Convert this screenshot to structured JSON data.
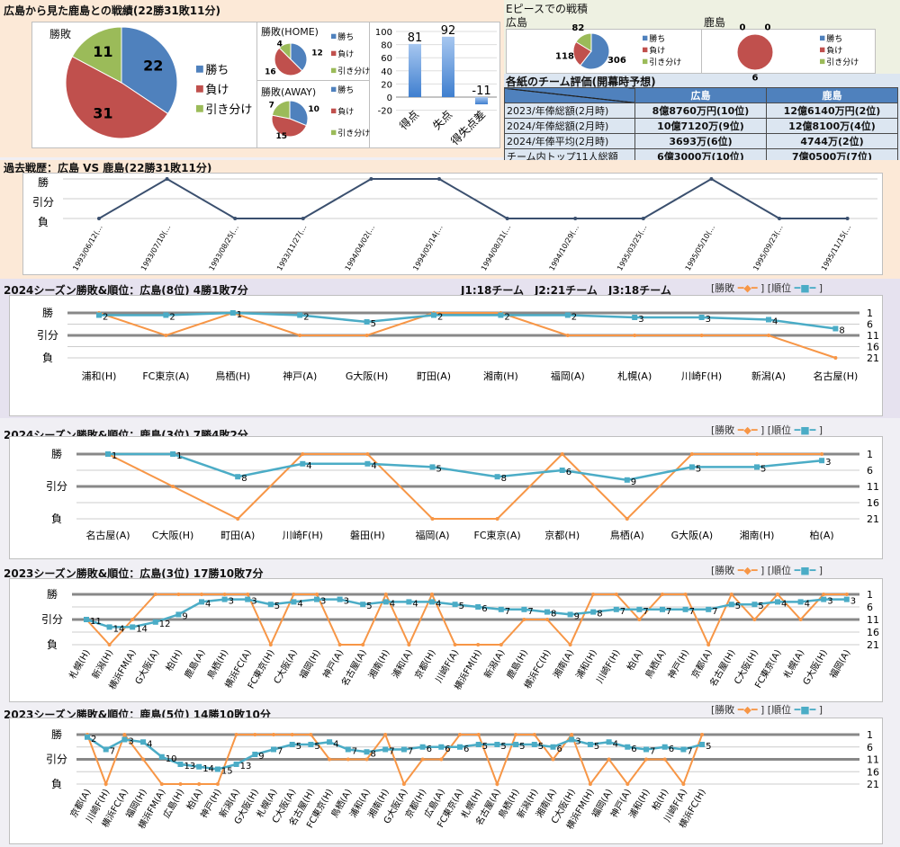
{
  "summary": {
    "title": "広島から見た鹿島との戦績(22勝31敗11分)",
    "legend": [
      "勝ち",
      "負け",
      "引き分け"
    ]
  },
  "epiece": {
    "title": "Eピースでの戦積",
    "hiroshima_label": "広島",
    "kashima_label": "鹿島"
  },
  "evaluation": {
    "title": "各紙のチーム評価(開幕時予想)",
    "headers": [
      "広島",
      "鹿島"
    ],
    "rows": [
      {
        "label": "2023/年俸総額(2月時)",
        "hiroshima": "8億8760万円(10位)",
        "kashima": "12億6140万円(2位)"
      },
      {
        "label": "2024/年俸総額(2月時)",
        "hiroshima": "10億7120万(9位)",
        "kashima": "12億8100万(4位)"
      },
      {
        "label": "2024/年俸平均(2月時)",
        "hiroshima": "3693万(6位)",
        "kashima": "4744万(2位)"
      },
      {
        "label": "チーム内トップ11人総額",
        "hiroshima": "6億3000万(10位)",
        "kashima": "7億0500万(7位)"
      }
    ]
  },
  "league_note": "J1:18チーム　J2:21チーム　J3:18チーム",
  "series_legend": {
    "result": "勝敗",
    "rank": "順位"
  },
  "result_axis": {
    "W": "勝",
    "D": "引分",
    "L": "負"
  },
  "rank_ticks": [
    "1",
    "6",
    "11",
    "16",
    "21"
  ],
  "colors": {
    "win": "#4f81bd",
    "loss": "#c0504d",
    "draw": "#9bbb59",
    "result_line": "#f79646",
    "rank_line": "#4bacc6",
    "history_line": "#3a4f6e"
  },
  "chart_data": [
    {
      "id": "pie_all",
      "type": "pie",
      "title": "勝敗",
      "labels": [
        "勝ち",
        "負け",
        "引き分け"
      ],
      "values": [
        22,
        31,
        11
      ]
    },
    {
      "id": "pie_home",
      "type": "pie",
      "title": "勝敗(HOME)",
      "labels": [
        "勝ち",
        "負け",
        "引き分け"
      ],
      "values": [
        12,
        16,
        4
      ]
    },
    {
      "id": "pie_away",
      "type": "pie",
      "title": "勝敗(AWAY)",
      "labels": [
        "勝ち",
        "負け",
        "引き分け"
      ],
      "values": [
        10,
        15,
        7
      ]
    },
    {
      "id": "goals",
      "type": "bar",
      "categories": [
        "得点",
        "失点",
        "得失点差"
      ],
      "values": [
        81,
        92,
        -11
      ],
      "ylim": [
        -20,
        100
      ],
      "yticks": [
        "100",
        "80",
        "60",
        "40",
        "20",
        "0",
        "-20"
      ]
    },
    {
      "id": "epiece_hiroshima",
      "type": "pie",
      "labels": [
        "勝ち",
        "負け",
        "引き分け"
      ],
      "values": [
        306,
        118,
        82
      ]
    },
    {
      "id": "epiece_kashima",
      "type": "pie",
      "labels": [
        "勝ち",
        "負け",
        "引き分け"
      ],
      "values": [
        0,
        6,
        0
      ]
    },
    {
      "id": "history",
      "type": "line",
      "title": "過去戦歴：広島 VS 鹿島(22勝31敗11分)",
      "categories": [
        "1993/06/12(…",
        "1993/07/10(…",
        "1993/08/25(…",
        "1993/11/27(…",
        "1994/04/02(…",
        "1994/05/14(…",
        "1994/08/31(…",
        "1994/10/29(…",
        "1995/03/25(…",
        "1995/05/10(…",
        "1995/09/23(…",
        "1995/11/15(…"
      ],
      "results": [
        "L",
        "W",
        "L",
        "L",
        "W",
        "W",
        "L",
        "L",
        "L",
        "W",
        "L",
        "L"
      ]
    },
    {
      "id": "s2024h",
      "type": "line",
      "title": "2024シーズン勝敗&順位：広島(8位) 4勝1敗7分",
      "categories": [
        "浦和(H)",
        "FC東京(A)",
        "鳥栖(H)",
        "神戸(A)",
        "G大阪(H)",
        "町田(A)",
        "湘南(H)",
        "福岡(A)",
        "札幌(A)",
        "川崎F(H)",
        "新潟(A)",
        "名古屋(H)"
      ],
      "results": [
        "W",
        "D",
        "W",
        "D",
        "D",
        "W",
        "W",
        "D",
        "D",
        "D",
        "D",
        "L"
      ],
      "ranks": [
        2,
        2,
        1,
        2,
        5,
        2,
        2,
        2,
        3,
        3,
        4,
        8
      ],
      "rank_axis": [
        1,
        21
      ]
    },
    {
      "id": "s2024k",
      "type": "line",
      "title": "2024シーズン勝敗&順位：鹿島(3位) 7勝4敗2分",
      "categories": [
        "名古屋(A)",
        "C大阪(H)",
        "町田(A)",
        "川崎F(H)",
        "磐田(H)",
        "福岡(A)",
        "FC東京(A)",
        "京都(H)",
        "鳥栖(A)",
        "G大阪(A)",
        "湘南(H)",
        "柏(A)"
      ],
      "results": [
        "W",
        "D",
        "L",
        "W",
        "W",
        "L",
        "L",
        "W",
        "L",
        "W",
        "W",
        "W"
      ],
      "ranks": [
        1,
        1,
        8,
        4,
        4,
        5,
        8,
        6,
        9,
        5,
        5,
        3
      ],
      "rank_axis": [
        1,
        21
      ]
    },
    {
      "id": "s2023h",
      "type": "line",
      "title": "2023シーズン勝敗&順位：広島(3位) 17勝10敗7分",
      "categories": [
        "札幌(H)",
        "新潟(H)",
        "横浜FM(A)",
        "G大阪(A)",
        "柏(H)",
        "鹿島(A)",
        "鳥栖(H)",
        "横浜FC(A)",
        "FC東京(H)",
        "C大阪(A)",
        "福岡(H)",
        "神戸(A)",
        "名古屋(A)",
        "湘南(H)",
        "浦和(A)",
        "京都(H)",
        "川崎F(A)",
        "横浜FM(H)",
        "新潟(A)",
        "鹿島(H)",
        "横浜FC(H)",
        "湘南(A)",
        "浦和(H)",
        "川崎F(H)",
        "柏(A)",
        "鳥栖(A)",
        "神戸(H)",
        "京都(A)",
        "名古屋(H)",
        "C大阪(H)",
        "FC東京(A)",
        "札幌(A)",
        "G大阪(H)",
        "福岡(A)"
      ],
      "results": [
        "D",
        "L",
        "D",
        "W",
        "W",
        "W",
        "W",
        "W",
        "L",
        "W",
        "W",
        "L",
        "L",
        "W",
        "L",
        "W",
        "L",
        "L",
        "L",
        "D",
        "D",
        "L",
        "W",
        "W",
        "D",
        "W",
        "W",
        "L",
        "W",
        "D",
        "W",
        "D",
        "W",
        "W"
      ],
      "ranks": [
        11,
        14,
        14,
        12,
        9,
        4,
        3,
        3,
        5,
        4,
        3,
        3,
        5,
        4,
        4,
        4,
        5,
        6,
        7,
        7,
        8,
        9,
        8,
        7,
        7,
        7,
        7,
        7,
        5,
        5,
        4,
        4,
        3,
        3
      ],
      "rank_axis": [
        1,
        21
      ]
    },
    {
      "id": "s2023k",
      "type": "line",
      "title": "2023シーズン勝敗&順位：鹿島(5位) 14勝10敗10分",
      "categories": [
        "京都(A)",
        "川崎F(H)",
        "横浜FC(A)",
        "福岡(H)",
        "横浜FM(A)",
        "広島(H)",
        "柏(A)",
        "神戸(H)",
        "新潟(A)",
        "G大阪(H)",
        "札幌(A)",
        "C大阪(A)",
        "名古屋(H)",
        "FC東京(H)",
        "鳥栖(A)",
        "浦和(A)",
        "湘南(H)",
        "G大阪(A)",
        "京都(H)",
        "広島(A)",
        "FC東京(A)",
        "札幌(H)",
        "名古屋(A)",
        "鳥栖(H)",
        "新潟(H)",
        "湘南(A)",
        "C大阪(H)",
        "横浜FM(H)",
        "福岡(A)",
        "神戸(A)",
        "浦和(H)",
        "柏(H)",
        "川崎F(A)",
        "横浜FC(H)"
      ],
      "results": [
        "W",
        "L",
        "W",
        "D",
        "L",
        "L",
        "L",
        "L",
        "W",
        "W",
        "W",
        "W",
        "W",
        "D",
        "D",
        "D",
        "W",
        "L",
        "D",
        "D",
        "W",
        "W",
        "L",
        "W",
        "W",
        "D",
        "W",
        "L",
        "D",
        "L",
        "D",
        "D",
        "L",
        "W"
      ],
      "ranks": [
        2,
        7,
        3,
        4,
        10,
        13,
        14,
        15,
        13,
        9,
        7,
        5,
        5,
        4,
        7,
        8,
        7,
        7,
        6,
        6,
        6,
        5,
        5,
        5,
        5,
        6,
        3,
        5,
        4,
        6,
        7,
        6,
        7,
        5
      ],
      "rank_axis": [
        1,
        21
      ]
    }
  ]
}
